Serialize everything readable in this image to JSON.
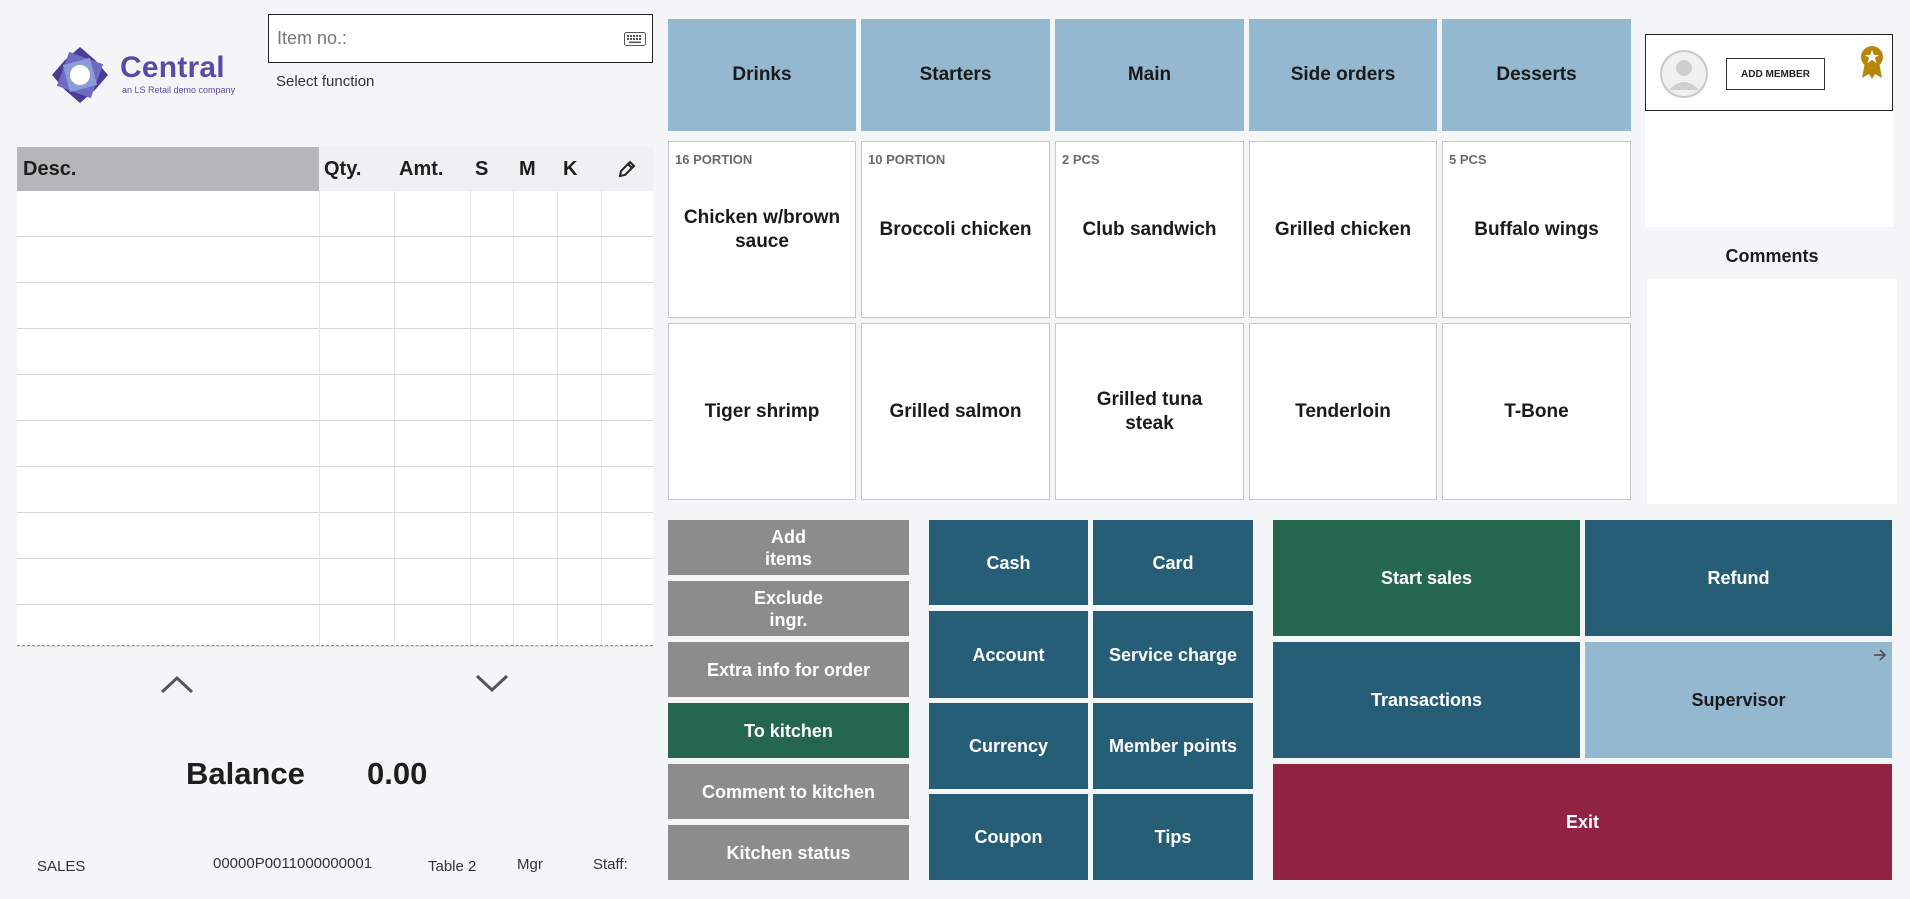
{
  "logo": {
    "brand": "Central",
    "tagline": "an LS Retail demo company"
  },
  "item_input": {
    "placeholder": "Item no.:",
    "value": ""
  },
  "select_function": "Select function",
  "table": {
    "headers": [
      "Desc.",
      "Qty.",
      "Amt.",
      "S",
      "M",
      "K"
    ],
    "rows": []
  },
  "balance": {
    "label": "Balance",
    "value": "0.00"
  },
  "status_bar": {
    "mode": "SALES",
    "receipt": "00000P0011000000001",
    "table": "Table 2",
    "manager": "Mgr",
    "staff": "Staff:"
  },
  "categories": [
    "Drinks",
    "Starters",
    "Main",
    "Side orders",
    "Desserts"
  ],
  "items": [
    {
      "portion": "16 PORTION",
      "name": "Chicken w/brown sauce"
    },
    {
      "portion": "10 PORTION",
      "name": "Broccoli chicken"
    },
    {
      "portion": "2 PCS",
      "name": "Club sandwich"
    },
    {
      "portion": "",
      "name": "Grilled chicken"
    },
    {
      "portion": "5 PCS",
      "name": "Buffalo wings"
    },
    {
      "portion": "",
      "name": "Tiger shrimp"
    },
    {
      "portion": "",
      "name": "Grilled salmon"
    },
    {
      "portion": "",
      "name": "Grilled tuna steak"
    },
    {
      "portion": "",
      "name": "Tenderloin"
    },
    {
      "portion": "",
      "name": "T-Bone"
    }
  ],
  "order_actions": {
    "add_items": "Add items",
    "exclude_ingr": "Exclude ingr.",
    "extra_info": "Extra info for order",
    "to_kitchen": "To kitchen",
    "comment_to_kitchen": "Comment to kitchen",
    "kitchen_status": "Kitchen status"
  },
  "payments": {
    "cash": "Cash",
    "card": "Card",
    "account": "Account",
    "service_charge": "Service charge",
    "currency": "Currency",
    "member_points": "Member points",
    "coupon": "Coupon",
    "tips": "Tips"
  },
  "operations": {
    "start_sales": "Start sales",
    "refund": "Refund",
    "transactions": "Transactions",
    "supervisor": "Supervisor",
    "exit": "Exit"
  },
  "member": {
    "add_member": "ADD MEMBER"
  },
  "comments": {
    "title": "Comments"
  },
  "colors": {
    "category": "#94b8cf",
    "teal": "#265e78",
    "green": "#25664e",
    "grey": "#8c8c8c",
    "exit": "#912343",
    "brand": "#5a4aa6",
    "badge": "#b8860b"
  },
  "icons": [
    "keyboard-icon",
    "pencil-icon",
    "chevron-up-icon",
    "chevron-down-icon",
    "avatar-icon",
    "award-badge-icon",
    "arrow-right-icon"
  ]
}
